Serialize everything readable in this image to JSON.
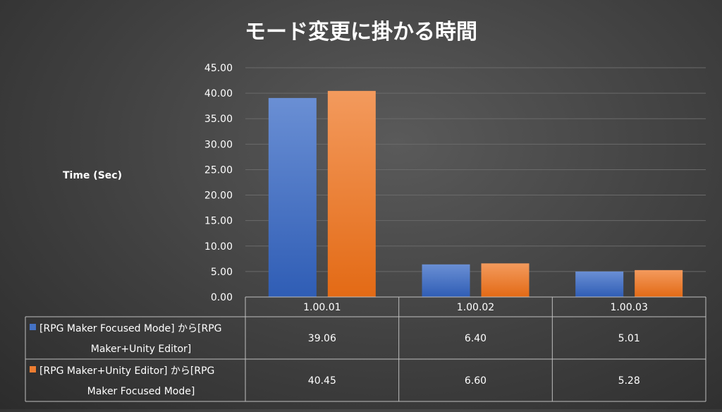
{
  "colors": {
    "series_1": "#4472c4",
    "series_2": "#ed7d31",
    "gridline": "#6a6a6a",
    "table_border": "#bfbfbf",
    "text": "#ffffff"
  },
  "chart_data": {
    "type": "bar",
    "title": "モード変更に掛かる時間",
    "ylabel": "Time (Sec)",
    "xlabel": "",
    "categories": [
      "1.00.01",
      "1.00.02",
      "1.00.03"
    ],
    "ylim": [
      0,
      45
    ],
    "ytick_step": 5,
    "ytick_labels": [
      "0.00",
      "5.00",
      "10.00",
      "15.00",
      "20.00",
      "25.00",
      "30.00",
      "35.00",
      "40.00",
      "45.00"
    ],
    "grid": true,
    "legend": "data-table",
    "series": [
      {
        "name_line1": "[RPG Maker Focused Mode] から[RPG",
        "name_line2": "Maker+Unity Editor]",
        "values": [
          39.06,
          6.4,
          5.01
        ],
        "value_labels": [
          "39.06",
          "6.40",
          "5.01"
        ]
      },
      {
        "name_line1": "[RPG Maker+Unity Editor] から[RPG",
        "name_line2": "Maker Focused Mode]",
        "values": [
          40.45,
          6.6,
          5.28
        ],
        "value_labels": [
          "40.45",
          "6.60",
          "5.28"
        ]
      }
    ]
  }
}
